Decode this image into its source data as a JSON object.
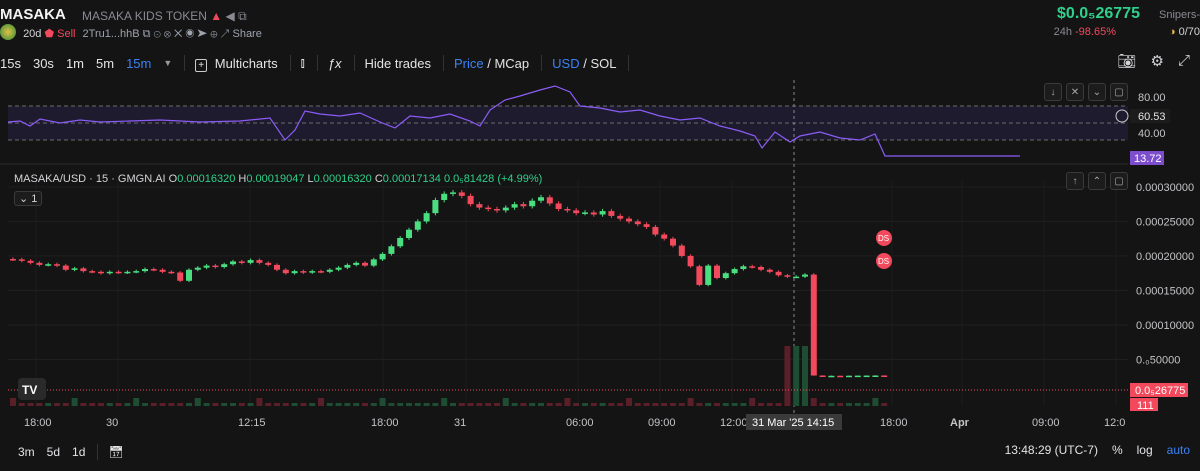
{
  "header": {
    "token_symbol": "MASAKA",
    "token_name": "MASAKA KIDS TOKEN",
    "age": "20d",
    "sell_label": "Sell",
    "address": "2Tru1...hhB",
    "share_label": "Share",
    "price": "$0.0₅26775",
    "snipers_label": "Snipers-",
    "change_period": "24h",
    "change_value": "-98.65%",
    "supply": "0/70"
  },
  "toolbar": {
    "intervals": [
      "15s",
      "30s",
      "1m",
      "5m",
      "15m"
    ],
    "active_interval": "15m",
    "multicharts_label": "Multicharts",
    "hide_trades_label": "Hide trades",
    "price_label": "Price",
    "mcap_label": "MCap",
    "usd_label": "USD",
    "sol_label": "SOL"
  },
  "rsi": {
    "axis_labels": [
      "80.00",
      "60.53",
      "40.00"
    ],
    "current": "13.72"
  },
  "main_chart": {
    "legend": "MASAKA/USD · 15 · GMGN.AI",
    "o": "0.00016320",
    "h": "0.00019047",
    "l": "0.00016320",
    "c": "0.00017134",
    "change": "0.0₅81428 (+4.99%)",
    "series_count": "1",
    "y_axis_labels": [
      "0.00030000",
      "0.00025000",
      "0.00020000",
      "0.00015000",
      "0.00010000",
      "0.₀50000"
    ],
    "last_price_tag": "0.0₅26775",
    "volume_tag": "111",
    "ds_markers": [
      "DS",
      "DS"
    ]
  },
  "x_axis": {
    "labels": [
      "18:00",
      "30",
      "12:15",
      "18:00",
      "31",
      "06:00",
      "09:00",
      "12:00",
      "14:15",
      "18:00",
      "Apr",
      "09:00",
      "12:0"
    ],
    "crosshair_label": "31 Mar '25  14:15"
  },
  "bottom": {
    "ranges": [
      "3m",
      "5d",
      "1d"
    ],
    "time": "13:48:29 (UTC-7)",
    "percent_label": "%",
    "log_label": "log",
    "auto_label": "auto"
  },
  "chart_data": {
    "type": "candlestick",
    "candles_close": [
      0.000195,
      0.000193,
      0.00019,
      0.000187,
      0.000188,
      0.000186,
      0.00018,
      0.000182,
      0.000178,
      0.000177,
      0.000175,
      0.000177,
      0.000176,
      0.000177,
      0.000178,
      0.000181,
      0.00018,
      0.000177,
      0.000176,
      0.000164,
      0.00018,
      0.000183,
      0.000186,
      0.000184,
      0.000188,
      0.000192,
      0.00019,
      0.000194,
      0.00019,
      0.000187,
      0.00018,
      0.000175,
      0.000178,
      0.000176,
      0.000178,
      0.000177,
      0.00018,
      0.000183,
      0.000187,
      0.00019,
      0.000186,
      0.000195,
      0.000203,
      0.000214,
      0.000226,
      0.000238,
      0.00025,
      0.000262,
      0.000281,
      0.00029,
      0.000292,
      0.000287,
      0.000275,
      0.00027,
      0.000268,
      0.000266,
      0.00027,
      0.000275,
      0.000272,
      0.00028,
      0.000285,
      0.000276,
      0.000268,
      0.000266,
      0.000262,
      0.000263,
      0.00026,
      0.000265,
      0.000258,
      0.000254,
      0.00025,
      0.000246,
      0.000242,
      0.000231,
      0.000225,
      0.000215,
      0.0002,
      0.000185,
      0.000158,
      0.000186,
      0.000168,
      0.000175,
      0.000181,
      0.000185,
      0.000184,
      0.00018,
      0.000177,
      0.000172,
      0.00017,
      0.00017,
      0.000173,
      2.68e-05,
      2.62e-05,
      2.64e-05,
      2.63e-05,
      2.65e-05,
      2.66e-05,
      2.67e-05,
      2.68e-05,
      2.67e-05
    ],
    "ylim": [
      0.0,
      0.00031
    ]
  }
}
